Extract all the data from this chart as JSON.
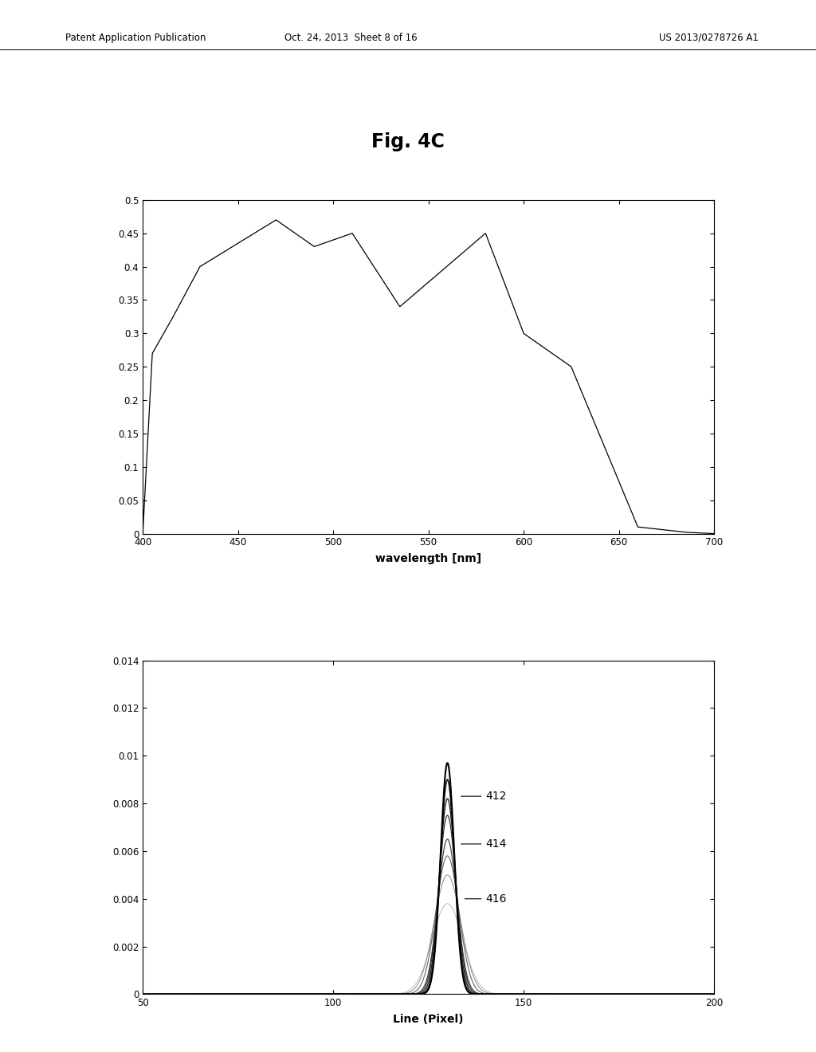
{
  "fig_title": "Fig. 4C",
  "patent_header_left": "Patent Application Publication",
  "patent_header_mid": "Oct. 24, 2013  Sheet 8 of 16",
  "patent_header_right": "US 2013/0278726 A1",
  "top_plot": {
    "xlabel": "wavelength [nm]",
    "xlim": [
      400,
      700
    ],
    "ylim": [
      0,
      0.5
    ],
    "xticks": [
      400,
      450,
      500,
      550,
      600,
      650,
      700
    ],
    "yticks": [
      0,
      0.05,
      0.1,
      0.15,
      0.2,
      0.25,
      0.3,
      0.35,
      0.4,
      0.45,
      0.5
    ]
  },
  "bottom_plot": {
    "xlabel": "Line (Pixel)",
    "xlim": [
      50,
      200
    ],
    "ylim": [
      0,
      0.014
    ],
    "xticks": [
      50,
      100,
      150,
      200
    ],
    "yticks": [
      0,
      0.002,
      0.004,
      0.006,
      0.008,
      0.01,
      0.012,
      0.014
    ]
  },
  "background_color": "#ffffff",
  "line_color": "#000000"
}
